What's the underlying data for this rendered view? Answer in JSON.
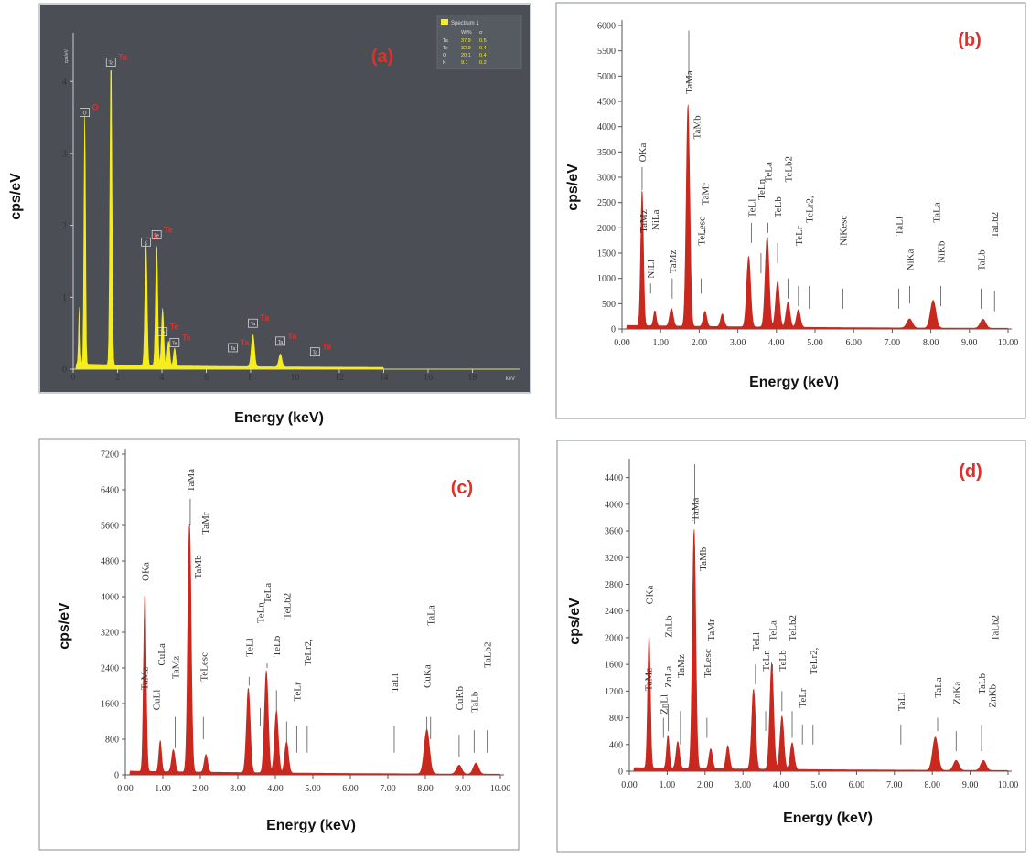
{
  "colors": {
    "panel_label": "#e0302a",
    "spectrum_red": "#c8281e",
    "spectrum_yellow": "#f5ee1c",
    "dark_bg": "#4b4e55",
    "tick_light": "#c9ccd2"
  },
  "chart_data": [
    {
      "id": "a",
      "type": "area",
      "panel_label": "(a)",
      "ylabel": "cps/eV",
      "xlabel": "Energy (keV)",
      "inner_y_unit": "cps/eV",
      "inner_x_unit": "keV",
      "xlim": [
        0,
        20
      ],
      "ylim": [
        0,
        4.6
      ],
      "x_ticks": [
        "0",
        "2",
        "4",
        "6",
        "8",
        "10",
        "12",
        "14",
        "16",
        "18"
      ],
      "x_tick_values": [
        0,
        2,
        4,
        6,
        8,
        10,
        12,
        14,
        16,
        18
      ],
      "y_ticks": [
        "0",
        "1",
        "2",
        "3",
        "4"
      ],
      "y_tick_values": [
        0,
        1,
        2,
        3,
        4
      ],
      "peaks": [
        [
          0.28,
          0.8
        ],
        [
          0.52,
          3.5
        ],
        [
          1.7,
          4.3
        ],
        [
          3.28,
          1.7
        ],
        [
          3.76,
          1.7
        ],
        [
          4.03,
          0.8
        ],
        [
          4.3,
          0.35
        ],
        [
          4.57,
          0.25
        ],
        [
          8.1,
          0.45
        ],
        [
          9.34,
          0.18
        ]
      ],
      "peak_markers": [
        {
          "x": 0.52,
          "y": 3.55,
          "box": "O",
          "red": "O"
        },
        {
          "x": 1.7,
          "y": 4.25,
          "box": "Ta",
          "red": "Ta"
        },
        {
          "x": 3.28,
          "y": 1.75,
          "box": "K",
          "red": "K"
        },
        {
          "x": 3.76,
          "y": 1.85,
          "box": "Te",
          "red": "Te"
        },
        {
          "x": 4.03,
          "y": 0.5,
          "box": "Te",
          "red": "Te"
        },
        {
          "x": 4.57,
          "y": 0.35,
          "box": "Te",
          "red": "Te"
        },
        {
          "x": 7.2,
          "y": 0.28,
          "box": "Ta",
          "red": "Ta"
        },
        {
          "x": 8.1,
          "y": 0.62,
          "box": "Ta",
          "red": "Ta"
        },
        {
          "x": 9.34,
          "y": 0.37,
          "box": "Ta",
          "red": "Ta"
        },
        {
          "x": 10.9,
          "y": 0.22,
          "box": "Ta",
          "red": "Ta"
        }
      ],
      "legend": {
        "name": "Spectrum 1",
        "headers": [
          "",
          "Wt%",
          "σ"
        ],
        "rows": [
          [
            "Ta",
            "37.9",
            "0.5"
          ],
          [
            "Te",
            "32.9",
            "0.4"
          ],
          [
            "O",
            "20.1",
            "0.4"
          ],
          [
            "K",
            "9.1",
            "0.2"
          ]
        ]
      }
    },
    {
      "id": "b",
      "type": "area",
      "panel_label": "(b)",
      "ylabel": "cps/eV",
      "xlabel": "Energy (keV)",
      "xlim": [
        0,
        10
      ],
      "ylim": [
        0,
        6000
      ],
      "x_ticks": [
        "0.00",
        "1.00",
        "2.00",
        "3.00",
        "4.00",
        "5.00",
        "6.00",
        "7.00",
        "8.00",
        "9.00",
        "10.00"
      ],
      "x_tick_values": [
        0,
        1,
        2,
        3,
        4,
        5,
        6,
        7,
        8,
        9,
        10
      ],
      "y_ticks": [
        "0",
        "500",
        "1000",
        "1500",
        "2000",
        "2500",
        "3000",
        "3500",
        "4000",
        "4500",
        "5000",
        "5500",
        "6000"
      ],
      "y_tick_values": [
        0,
        500,
        1000,
        1500,
        2000,
        2500,
        3000,
        3500,
        4000,
        4500,
        5000,
        5500,
        6000
      ],
      "peaks": [
        [
          0.52,
          2700
        ],
        [
          0.85,
          300
        ],
        [
          1.28,
          350
        ],
        [
          1.71,
          4400
        ],
        [
          2.15,
          300
        ],
        [
          2.6,
          250
        ],
        [
          3.28,
          1400
        ],
        [
          3.76,
          1800
        ],
        [
          4.03,
          900
        ],
        [
          4.3,
          500
        ],
        [
          4.57,
          350
        ],
        [
          7.45,
          180
        ],
        [
          8.06,
          550
        ],
        [
          9.35,
          180
        ]
      ],
      "peak_labels": [
        {
          "text": "OKa",
          "x": 0.52,
          "line_from": 2750,
          "line_to": 3200,
          "label_y": 3300
        },
        {
          "text": "TaMz",
          "x": 0.55,
          "line_from": 0,
          "line_to": 0,
          "label_y": 1900
        },
        {
          "text": "NiLa",
          "x": 0.85,
          "line_from": 0,
          "line_to": 0,
          "label_y": 1950
        },
        {
          "text": "NiLl",
          "x": 0.74,
          "line_from": 700,
          "line_to": 900,
          "label_y": 1000
        },
        {
          "text": "TaMz",
          "x": 1.3,
          "line_from": 600,
          "line_to": 1000,
          "label_y": 1100
        },
        {
          "text": "TaMa",
          "x": 1.73,
          "line_from": 4800,
          "line_to": 5900,
          "label_y": 4650
        },
        {
          "text": "TaMb",
          "x": 1.93,
          "line_from": 0,
          "line_to": 0,
          "label_y": 3750
        },
        {
          "text": "TaMr",
          "x": 2.15,
          "line_from": 1900,
          "line_to": 2000,
          "label_y": 2450
        },
        {
          "text": "TeLesc",
          "x": 2.05,
          "line_from": 700,
          "line_to": 1000,
          "label_y": 1650
        },
        {
          "text": "TeLl",
          "x": 3.35,
          "line_from": 1700,
          "line_to": 2100,
          "label_y": 2200
        },
        {
          "text": "TeLn",
          "x": 3.6,
          "line_from": 1100,
          "line_to": 1500,
          "label_y": 2550
        },
        {
          "text": "TeLa",
          "x": 3.78,
          "line_from": 1900,
          "line_to": 2100,
          "label_y": 2900
        },
        {
          "text": "TeLb",
          "x": 4.03,
          "line_from": 1300,
          "line_to": 1700,
          "label_y": 2200
        },
        {
          "text": "TeLb2",
          "x": 4.3,
          "line_from": 600,
          "line_to": 1000,
          "label_y": 2900
        },
        {
          "text": "TeLr",
          "x": 4.57,
          "line_from": 450,
          "line_to": 850,
          "label_y": 1650
        },
        {
          "text": "TeLr2,",
          "x": 4.85,
          "line_from": 400,
          "line_to": 850,
          "label_y": 2100
        },
        {
          "text": "NiKesc",
          "x": 5.72,
          "line_from": 400,
          "line_to": 800,
          "label_y": 1650
        },
        {
          "text": "TaLl",
          "x": 7.17,
          "line_from": 400,
          "line_to": 800,
          "label_y": 1850
        },
        {
          "text": "NiKa",
          "x": 7.45,
          "line_from": 500,
          "line_to": 850,
          "label_y": 1150
        },
        {
          "text": "TaLa",
          "x": 8.14,
          "line_from": 1700,
          "line_to": 0,
          "label_y": 2100
        },
        {
          "text": "NiKb",
          "x": 8.26,
          "line_from": 450,
          "line_to": 850,
          "label_y": 1300
        },
        {
          "text": "TaLb",
          "x": 9.3,
          "line_from": 400,
          "line_to": 800,
          "label_y": 1150
        },
        {
          "text": "TaLb2",
          "x": 9.65,
          "line_from": 350,
          "line_to": 750,
          "label_y": 1800
        }
      ]
    },
    {
      "id": "c",
      "type": "area",
      "panel_label": "(c)",
      "ylabel": "cps/eV",
      "xlabel": "Energy (keV)",
      "xlim": [
        0,
        10
      ],
      "ylim": [
        0,
        7200
      ],
      "x_ticks": [
        "0.00",
        "1.00",
        "2.00",
        "3.00",
        "4.00",
        "5.00",
        "6.00",
        "7.00",
        "8.00",
        "9.00",
        "10.00"
      ],
      "x_tick_values": [
        0,
        1,
        2,
        3,
        4,
        5,
        6,
        7,
        8,
        9,
        10
      ],
      "y_ticks": [
        "0",
        "800",
        "1600",
        "2400",
        "3200",
        "4000",
        "4800",
        "5600",
        "6400",
        "7200"
      ],
      "y_tick_values": [
        0,
        800,
        1600,
        2400,
        3200,
        4000,
        4800,
        5600,
        6400,
        7200
      ],
      "peaks": [
        [
          0.52,
          4000
        ],
        [
          0.93,
          700
        ],
        [
          1.28,
          500
        ],
        [
          1.71,
          5600
        ],
        [
          2.15,
          400
        ],
        [
          3.28,
          1900
        ],
        [
          3.76,
          2300
        ],
        [
          4.03,
          1400
        ],
        [
          4.3,
          700
        ],
        [
          8.04,
          1000
        ],
        [
          8.9,
          200
        ],
        [
          9.35,
          250
        ]
      ],
      "peak_labels": [
        {
          "text": "OKa",
          "x": 0.52,
          "line_from": 0,
          "line_to": 0,
          "label_y": 4350
        },
        {
          "text": "TaMz",
          "x": 0.5,
          "line_from": 0,
          "line_to": 0,
          "label_y": 1900
        },
        {
          "text": "CuLl",
          "x": 0.82,
          "line_from": 800,
          "line_to": 1300,
          "label_y": 1450
        },
        {
          "text": "CuLa",
          "x": 0.95,
          "line_from": 0,
          "line_to": 0,
          "label_y": 2450
        },
        {
          "text": "TaMz",
          "x": 1.33,
          "line_from": 600,
          "line_to": 1300,
          "label_y": 2150
        },
        {
          "text": "TaMa",
          "x": 1.73,
          "line_from": 5600,
          "line_to": 6200,
          "label_y": 6350
        },
        {
          "text": "TaMb",
          "x": 1.93,
          "line_from": 0,
          "line_to": 0,
          "label_y": 4400
        },
        {
          "text": "TaMr",
          "x": 2.12,
          "line_from": 0,
          "line_to": 0,
          "label_y": 5400
        },
        {
          "text": "TeLesc",
          "x": 2.08,
          "line_from": 800,
          "line_to": 1300,
          "label_y": 2100
        },
        {
          "text": "TeLl",
          "x": 3.3,
          "line_from": 2000,
          "line_to": 2200,
          "label_y": 2650
        },
        {
          "text": "TeLn",
          "x": 3.6,
          "line_from": 1100,
          "line_to": 1500,
          "label_y": 3400
        },
        {
          "text": "TeLa",
          "x": 3.78,
          "line_from": 2400,
          "line_to": 2500,
          "label_y": 3850
        },
        {
          "text": "TeLb",
          "x": 4.03,
          "line_from": 1400,
          "line_to": 1900,
          "label_y": 2650
        },
        {
          "text": "TeLb2",
          "x": 4.3,
          "line_from": 700,
          "line_to": 1200,
          "label_y": 3500
        },
        {
          "text": "TeLr",
          "x": 4.57,
          "line_from": 500,
          "line_to": 1100,
          "label_y": 1650
        },
        {
          "text": "TeLr2,",
          "x": 4.85,
          "line_from": 500,
          "line_to": 1100,
          "label_y": 2450
        },
        {
          "text": "TaLl",
          "x": 7.17,
          "line_from": 500,
          "line_to": 1100,
          "label_y": 1850
        },
        {
          "text": "CuKa",
          "x": 8.04,
          "line_from": 1000,
          "line_to": 1300,
          "label_y": 1950
        },
        {
          "text": "TaLa",
          "x": 8.14,
          "line_from": 800,
          "line_to": 1300,
          "label_y": 3350
        },
        {
          "text": "CuKb",
          "x": 8.9,
          "line_from": 400,
          "line_to": 900,
          "label_y": 1450
        },
        {
          "text": "TaLb",
          "x": 9.3,
          "line_from": 500,
          "line_to": 1000,
          "label_y": 1400
        },
        {
          "text": "TaLb2",
          "x": 9.65,
          "line_from": 500,
          "line_to": 1000,
          "label_y": 2400
        }
      ]
    },
    {
      "id": "d",
      "type": "area",
      "panel_label": "(d)",
      "ylabel": "cps/eV",
      "xlabel": "Energy (keV)",
      "xlim": [
        0,
        10
      ],
      "ylim": [
        0,
        4600
      ],
      "x_ticks": [
        "0.00",
        "1.00",
        "2.00",
        "3.00",
        "4.00",
        "5.00",
        "6.00",
        "7.00",
        "8.00",
        "9.00",
        "10.00"
      ],
      "x_tick_values": [
        0,
        1,
        2,
        3,
        4,
        5,
        6,
        7,
        8,
        9,
        10
      ],
      "y_ticks": [
        "0",
        "400",
        "800",
        "1200",
        "1600",
        "2000",
        "2400",
        "2800",
        "3200",
        "3600",
        "4000",
        "4400"
      ],
      "y_tick_values": [
        0,
        400,
        800,
        1200,
        1600,
        2000,
        2400,
        2800,
        3200,
        3600,
        4000,
        4400
      ],
      "peaks": [
        [
          0.52,
          2000
        ],
        [
          1.02,
          500
        ],
        [
          1.28,
          400
        ],
        [
          1.71,
          3600
        ],
        [
          2.15,
          300
        ],
        [
          2.6,
          350
        ],
        [
          3.28,
          1200
        ],
        [
          3.76,
          1600
        ],
        [
          4.03,
          800
        ],
        [
          4.3,
          400
        ],
        [
          8.08,
          500
        ],
        [
          8.63,
          150
        ],
        [
          9.35,
          150
        ]
      ],
      "peak_labels": [
        {
          "text": "OKa",
          "x": 0.52,
          "line_from": 2000,
          "line_to": 2400,
          "label_y": 2500
        },
        {
          "text": "TaMz",
          "x": 0.5,
          "line_from": 0,
          "line_to": 0,
          "label_y": 1200
        },
        {
          "text": "ZnLl",
          "x": 0.9,
          "line_from": 500,
          "line_to": 800,
          "label_y": 850
        },
        {
          "text": "ZnLa",
          "x": 1.02,
          "line_from": 0,
          "line_to": 0,
          "label_y": 1250
        },
        {
          "text": "ZnLb",
          "x": 1.03,
          "line_from": 600,
          "line_to": 1000,
          "label_y": 2000
        },
        {
          "text": "TaMz",
          "x": 1.35,
          "line_from": 400,
          "line_to": 900,
          "label_y": 1400
        },
        {
          "text": "TaMa",
          "x": 1.73,
          "line_from": 3700,
          "line_to": 4600,
          "label_y": 3750
        },
        {
          "text": "TaMb",
          "x": 1.93,
          "line_from": 0,
          "line_to": 0,
          "label_y": 3000
        },
        {
          "text": "TaMr",
          "x": 2.15,
          "line_from": 0,
          "line_to": 0,
          "label_y": 1950
        },
        {
          "text": "TeLesc",
          "x": 2.05,
          "line_from": 500,
          "line_to": 800,
          "label_y": 1400
        },
        {
          "text": "TeLl",
          "x": 3.33,
          "line_from": 1300,
          "line_to": 1600,
          "label_y": 1800
        },
        {
          "text": "TeLn",
          "x": 3.6,
          "line_from": 600,
          "line_to": 900,
          "label_y": 1500
        },
        {
          "text": "TeLa",
          "x": 3.78,
          "line_from": 1500,
          "line_to": 1600,
          "label_y": 1950
        },
        {
          "text": "TeLb",
          "x": 4.03,
          "line_from": 900,
          "line_to": 1200,
          "label_y": 1500
        },
        {
          "text": "TeLb2",
          "x": 4.3,
          "line_from": 500,
          "line_to": 900,
          "label_y": 1950
        },
        {
          "text": "TeLr",
          "x": 4.57,
          "line_from": 400,
          "line_to": 700,
          "label_y": 950
        },
        {
          "text": "TeLr2,",
          "x": 4.85,
          "line_from": 400,
          "line_to": 700,
          "label_y": 1450
        },
        {
          "text": "TaLl",
          "x": 7.17,
          "line_from": 400,
          "line_to": 700,
          "label_y": 900
        },
        {
          "text": "TaLa",
          "x": 8.14,
          "line_from": 600,
          "line_to": 800,
          "label_y": 1100
        },
        {
          "text": "ZnKa",
          "x": 8.63,
          "line_from": 300,
          "line_to": 600,
          "label_y": 1000
        },
        {
          "text": "TaLb",
          "x": 9.3,
          "line_from": 300,
          "line_to": 700,
          "label_y": 1150
        },
        {
          "text": "ZnKb",
          "x": 9.58,
          "line_from": 300,
          "line_to": 600,
          "label_y": 950
        },
        {
          "text": "TaLb2",
          "x": 9.65,
          "line_from": 0,
          "line_to": 0,
          "label_y": 1950
        }
      ]
    }
  ]
}
